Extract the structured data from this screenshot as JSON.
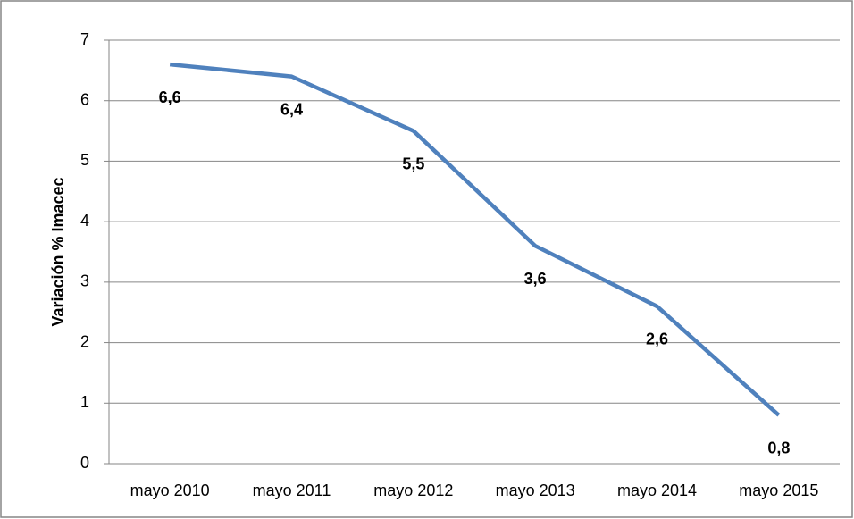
{
  "chart_data": {
    "type": "line",
    "y_label": "Variación % Imacec",
    "categories": [
      "mayo 2010",
      "mayo 2011",
      "mayo 2012",
      "mayo 2013",
      "mayo 2014",
      "mayo 2015"
    ],
    "values": [
      6.6,
      6.4,
      5.5,
      3.6,
      2.6,
      0.8
    ],
    "value_labels": [
      "6,6",
      "6,4",
      "5,5",
      "3,6",
      "2,6",
      "0,8"
    ],
    "color": "#4f81bd",
    "ylim": [
      0,
      7
    ],
    "yticks": [
      0,
      1,
      2,
      3,
      4,
      5,
      6,
      7
    ],
    "grid": true
  }
}
